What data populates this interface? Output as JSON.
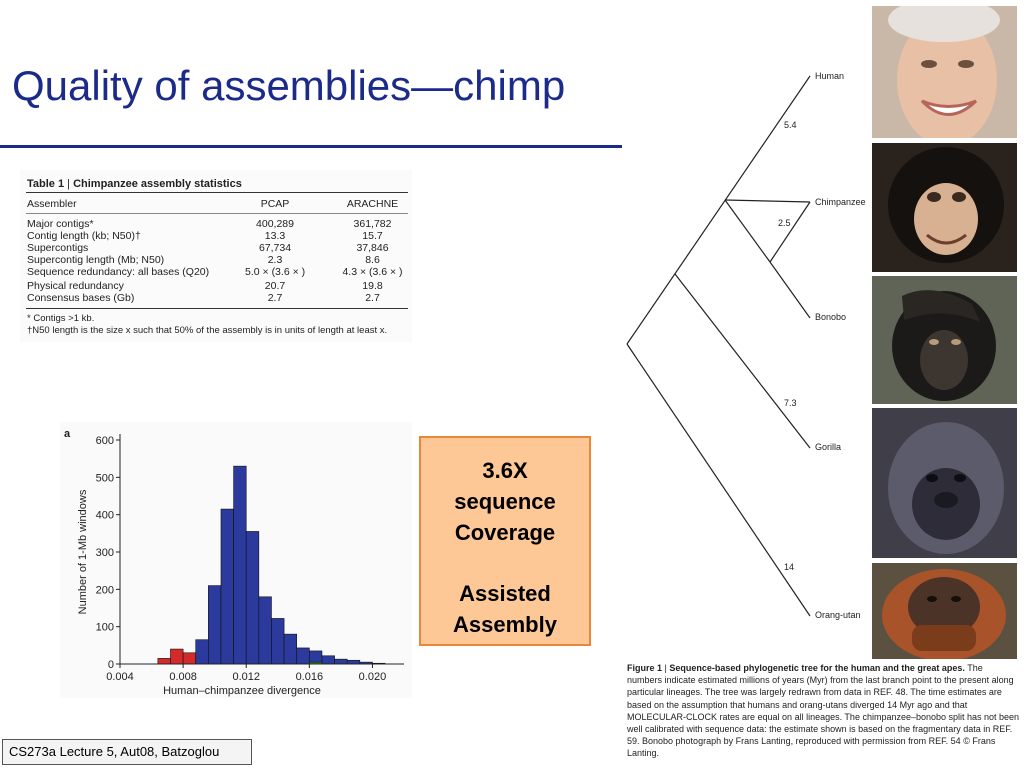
{
  "slide": {
    "title": "Quality of assemblies—chimp",
    "footer": "CS273a Lecture 5, Aut08, Batzoglou"
  },
  "table": {
    "label": "Table 1",
    "caption": "Chimpanzee assembly statistics",
    "headers": [
      "Assembler",
      "PCAP",
      "ARACHNE"
    ],
    "rows": [
      [
        "Major contigs*",
        "400,289",
        "361,782"
      ],
      [
        "Contig length (kb; N50)†",
        "13.3",
        "15.7"
      ],
      [
        "Supercontigs",
        "67,734",
        "37,846"
      ],
      [
        "Supercontig length (Mb; N50)",
        "2.3",
        "8.6"
      ],
      [
        "Sequence redundancy: all bases (Q20)",
        "5.0 ×  (3.6 × )",
        "4.3 ×  (3.6 × )"
      ],
      [
        "Physical redundancy",
        "20.7",
        "19.8"
      ],
      [
        "Consensus bases (Gb)",
        "2.7",
        "2.7"
      ]
    ],
    "footnotes": [
      "* Contigs >1 kb.",
      "†N50 length is the size x such that 50% of the assembly is in units of length at least x."
    ]
  },
  "histogram": {
    "panel_label": "a"
  },
  "chart_data": {
    "type": "bar",
    "title": "",
    "xlabel": "Human–chimpanzee divergence",
    "ylabel": "Number of 1-Mb windows",
    "xlim": [
      0.004,
      0.022
    ],
    "ylim": [
      0,
      600
    ],
    "xticks": [
      "0.004",
      "0.008",
      "0.012",
      "0.016",
      "0.020"
    ],
    "yticks": [
      "0",
      "100",
      "200",
      "300",
      "400",
      "500",
      "600"
    ],
    "bin_width": 0.0008,
    "bin_starts": [
      0.0064,
      0.0072,
      0.008,
      0.0088,
      0.0096,
      0.0104,
      0.0112,
      0.012,
      0.0128,
      0.0136,
      0.0144,
      0.0152,
      0.016,
      0.0168,
      0.0176,
      0.0184,
      0.0192,
      0.02
    ],
    "series": [
      {
        "color": "#d42a2a",
        "values": [
          15,
          40,
          30,
          20,
          18,
          14,
          10,
          6,
          3,
          2,
          1,
          0,
          0,
          0,
          0,
          0,
          0,
          0
        ]
      },
      {
        "color": "#2b3a9c",
        "values": [
          0,
          0,
          0,
          65,
          210,
          415,
          530,
          355,
          180,
          122,
          80,
          43,
          35,
          22,
          13,
          10,
          5,
          2
        ]
      },
      {
        "color": "#2e8b3a",
        "values": [
          0,
          0,
          0,
          0,
          0,
          0,
          0,
          0,
          0,
          0,
          0,
          0,
          5,
          0,
          0,
          0,
          0,
          0
        ]
      }
    ]
  },
  "callout": {
    "line1": "3.6X",
    "line2": "sequence",
    "line3": "Coverage",
    "line4": "Assisted",
    "line5": "Assembly"
  },
  "tree": {
    "leaves": [
      "Human",
      "Chimpanzee",
      "Bonobo",
      "Gorilla",
      "Orang-utan"
    ],
    "branch_labels": [
      "5.4",
      "2.5",
      "7.3",
      "14"
    ]
  },
  "photos": [
    "human-photo",
    "chimpanzee-photo",
    "bonobo-photo",
    "gorilla-photo",
    "orangutan-photo"
  ],
  "figure_caption": {
    "label": "Figure 1",
    "title": "Sequence-based phylogenetic tree for the human and the great apes.",
    "body": "The numbers indicate estimated millions of years (Myr) from the last branch point to the present along particular lineages. The tree was largely redrawn from data in REF. 48. The time estimates are based on the assumption that humans and orang-utans diverged 14 Myr ago and that MOLECULAR-CLOCK rates are equal on all lineages. The chimpanzee–bonobo split has not been well calibrated with sequence data: the estimate shown is based on the fragmentary data in REF. 59. Bonobo photograph by Frans Lanting, reproduced with permission from REF. 54 © Frans Lanting."
  }
}
